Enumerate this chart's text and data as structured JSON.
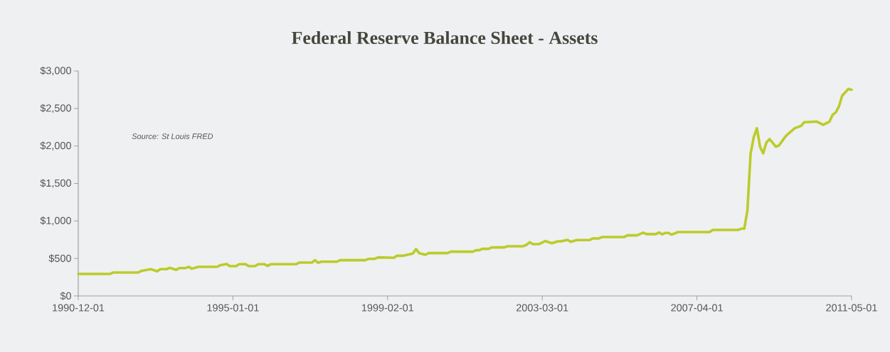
{
  "chart_data": {
    "type": "line",
    "title": "Federal Reserve Balance Sheet - Assets",
    "annotations": [
      "Source:  St Louis  FRED"
    ],
    "x": [
      "1990-12",
      "1991-10",
      "1991-11",
      "1992-07",
      "1992-08",
      "1992-11",
      "1993-01",
      "1993-02",
      "1993-04",
      "1993-05",
      "1993-07",
      "1993-08",
      "1993-10",
      "1993-11",
      "1993-12",
      "1994-02",
      "1994-08",
      "1994-09",
      "1994-11",
      "1994-12",
      "1995-02",
      "1995-03",
      "1995-05",
      "1995-06",
      "1995-08",
      "1995-09",
      "1995-11",
      "1995-12",
      "1996-01",
      "1996-09",
      "1996-10",
      "1997-02",
      "1997-03",
      "1997-04",
      "1997-05",
      "1997-10",
      "1997-11",
      "1998-07",
      "1998-08",
      "1998-10",
      "1998-11",
      "1999-04",
      "1999-05",
      "1999-07",
      "1999-09",
      "1999-10",
      "1999-11",
      "1999-12",
      "2000-02",
      "2000-03",
      "2000-09",
      "2000-10",
      "2001-05",
      "2001-06",
      "2001-07",
      "2001-08",
      "2001-10",
      "2001-11",
      "2002-03",
      "2002-04",
      "2002-09",
      "2002-10",
      "2002-11",
      "2002-12",
      "2003-02",
      "2003-04",
      "2003-06",
      "2003-08",
      "2003-09",
      "2003-11",
      "2003-12",
      "2004-02",
      "2004-06",
      "2004-07",
      "2004-09",
      "2004-10",
      "2005-05",
      "2005-06",
      "2005-09",
      "2005-11",
      "2005-12",
      "2006-03",
      "2006-04",
      "2006-05",
      "2006-06",
      "2006-07",
      "2006-08",
      "2006-10",
      "2007-08",
      "2007-09",
      "2008-05",
      "2008-06",
      "2008-07",
      "2008-08",
      "2008-09",
      "2008-10",
      "2008-11",
      "2008-12",
      "2009-01",
      "2009-02",
      "2009-03",
      "2009-05",
      "2009-06",
      "2009-08",
      "2009-09",
      "2009-11",
      "2010-01",
      "2010-02",
      "2010-06",
      "2010-08",
      "2010-10",
      "2010-11",
      "2010-12",
      "2011-01",
      "2011-02",
      "2011-04",
      "2011-05"
    ],
    "series": [
      {
        "color": "#bccb2a",
        "values": [
          293,
          293,
          312,
          312,
          334,
          357,
          328,
          357,
          357,
          375,
          347,
          372,
          372,
          388,
          363,
          388,
          388,
          410,
          426,
          397,
          397,
          423,
          423,
          397,
          397,
          423,
          423,
          401,
          423,
          423,
          445,
          445,
          477,
          442,
          457,
          457,
          477,
          477,
          495,
          495,
          514,
          508,
          536,
          536,
          555,
          565,
          625,
          571,
          549,
          571,
          571,
          590,
          590,
          609,
          609,
          628,
          628,
          647,
          647,
          663,
          663,
          681,
          716,
          691,
          691,
          732,
          703,
          729,
          729,
          748,
          722,
          745,
          745,
          767,
          767,
          786,
          786,
          808,
          808,
          843,
          824,
          824,
          846,
          821,
          840,
          840,
          818,
          852,
          852,
          880,
          880,
          896,
          896,
          1139,
          1896,
          2117,
          2237,
          1990,
          1902,
          2044,
          2092,
          1990,
          2006,
          2123,
          2164,
          2237,
          2268,
          2316,
          2325,
          2281,
          2325,
          2416,
          2448,
          2527,
          2669,
          2761,
          2750
        ]
      }
    ],
    "line_style": "solid",
    "xlim": [
      "1990-12-01",
      "2011-05-01"
    ],
    "xticks": [
      {
        "value": "1990-12-01",
        "label": "1990-12-01"
      },
      {
        "value": "1995-01-01",
        "label": "1995-01-01"
      },
      {
        "value": "1999-02-01",
        "label": "1999-02-01"
      },
      {
        "value": "2003-03-01",
        "label": "2003-03-01"
      },
      {
        "value": "2007-04-01",
        "label": "2007-04-01"
      },
      {
        "value": "2011-05-01",
        "label": "2011-05-01"
      }
    ],
    "ylim": [
      0,
      3000
    ],
    "yticks": [
      {
        "value": 0,
        "label": "$0"
      },
      {
        "value": 500,
        "label": "$500"
      },
      {
        "value": 1000,
        "label": "$1,000"
      },
      {
        "value": 1500,
        "label": "$1,500"
      },
      {
        "value": 2000,
        "label": "$2,000"
      },
      {
        "value": 2500,
        "label": "$2,500"
      },
      {
        "value": 3000,
        "label": "$3,000"
      }
    ]
  }
}
